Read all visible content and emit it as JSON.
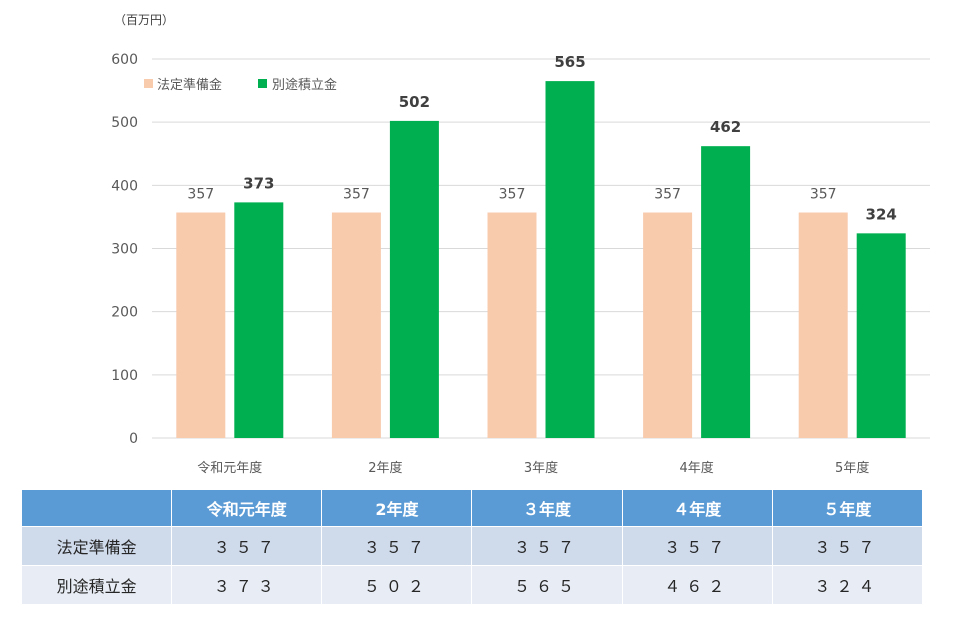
{
  "chart_data": {
    "type": "bar",
    "unit_label": "（百万円）",
    "categories": [
      "令和元年度",
      "2年度",
      "3年度",
      "4年度",
      "5年度"
    ],
    "series": [
      {
        "name": "法定準備金",
        "values": [
          357,
          357,
          357,
          357,
          357
        ],
        "color": "#f8cbad"
      },
      {
        "name": "別途積立金",
        "values": [
          373,
          502,
          565,
          462,
          324
        ],
        "color": "#00b050"
      }
    ],
    "ylim": [
      0,
      600
    ],
    "yticks": [
      0,
      100,
      200,
      300,
      400,
      500,
      600
    ],
    "grid": true,
    "legend_position": "top-left"
  },
  "table": {
    "corner": "",
    "headers": [
      "令和元年度",
      "2年度",
      "３年度",
      "４年度",
      "５年度"
    ],
    "rows": [
      {
        "label": "法定準備金",
        "cells": [
          "３５７",
          "３５７",
          "３５７",
          "３５７",
          "３５７"
        ]
      },
      {
        "label": "別途積立金",
        "cells": [
          "３７３",
          "５０２",
          "５６５",
          "４６２",
          "３２４"
        ]
      }
    ]
  }
}
